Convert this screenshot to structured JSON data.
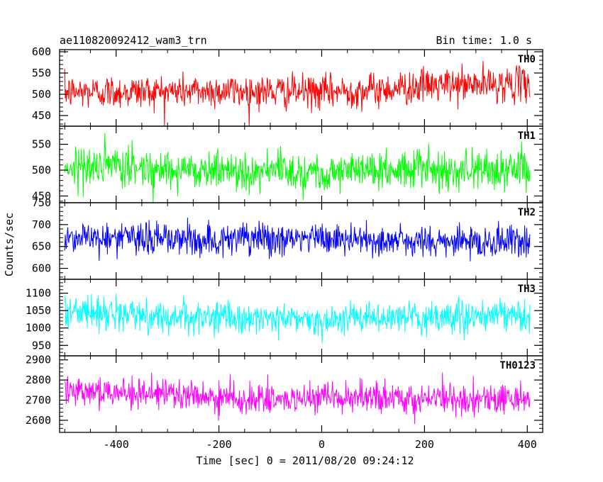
{
  "header": {
    "left_title": "ae110820092412_wam3_trn",
    "right_title": "Bin time: 1.0 s"
  },
  "chart_data": {
    "type": "line",
    "title": "ae110820092412_wam3_trn",
    "subtitle": "Bin time: 1.0 s",
    "xlabel": "Time [sec] 0 = 2011/08/20 09:24:12",
    "ylabel": "Counts/sec",
    "xlim": [
      -510,
      430
    ],
    "x_ticks": [
      "-400",
      "-200",
      "0",
      "200",
      "400"
    ],
    "x_tick_values": [
      -400,
      -200,
      0,
      200,
      400
    ],
    "x_start": -500,
    "x_end": 405,
    "bin_time": 1.0,
    "grid": false,
    "panels": [
      {
        "name": "TH0",
        "color": "#ff0000",
        "ylim": [
          425,
          605
        ],
        "mean": 510,
        "spread": 40,
        "trend": [
          [
            -500,
            505
          ],
          [
            -200,
            508
          ],
          [
            0,
            505
          ],
          [
            100,
            510
          ],
          [
            200,
            520
          ],
          [
            405,
            525
          ]
        ],
        "y_ticks": [
          "450",
          "500",
          "550",
          "600"
        ],
        "y_tick_values": [
          450,
          500,
          550,
          600
        ]
      },
      {
        "name": "TH1",
        "color": "#00ff00",
        "ylim": [
          437,
          585
        ],
        "mean": 500,
        "spread": 38,
        "trend": [
          [
            -500,
            508
          ],
          [
            -200,
            500
          ],
          [
            0,
            497
          ],
          [
            200,
            502
          ],
          [
            405,
            500
          ]
        ],
        "y_ticks": [
          "450",
          "500",
          "550"
        ],
        "y_tick_values": [
          450,
          500,
          550
        ]
      },
      {
        "name": "TH2",
        "color": "#0000ff",
        "ylim": [
          575,
          750
        ],
        "mean": 665,
        "spread": 38,
        "trend": [
          [
            -500,
            672
          ],
          [
            -200,
            665
          ],
          [
            0,
            668
          ],
          [
            200,
            660
          ],
          [
            405,
            662
          ]
        ],
        "y_ticks": [
          "600",
          "650",
          "700",
          "750"
        ],
        "y_tick_values": [
          600,
          650,
          700,
          750
        ]
      },
      {
        "name": "TH3",
        "color": "#00ffff",
        "ylim": [
          920,
          1140
        ],
        "mean": 1030,
        "spread": 45,
        "trend": [
          [
            -500,
            1050
          ],
          [
            -300,
            1032
          ],
          [
            0,
            1025
          ],
          [
            200,
            1030
          ],
          [
            405,
            1035
          ]
        ],
        "y_ticks": [
          "950",
          "1000",
          "1050",
          "1100"
        ],
        "y_tick_values": [
          950,
          1000,
          1050,
          1100
        ]
      },
      {
        "name": "TH0123",
        "color": "#ff00ff",
        "ylim": [
          2540,
          2920
        ],
        "mean": 2720,
        "spread": 75,
        "trend": [
          [
            -500,
            2760
          ],
          [
            -300,
            2725
          ],
          [
            -100,
            2700
          ],
          [
            100,
            2710
          ],
          [
            300,
            2705
          ],
          [
            405,
            2710
          ]
        ],
        "y_ticks": [
          "2600",
          "2700",
          "2800",
          "2900"
        ],
        "y_tick_values": [
          2600,
          2700,
          2800,
          2900
        ]
      }
    ]
  }
}
